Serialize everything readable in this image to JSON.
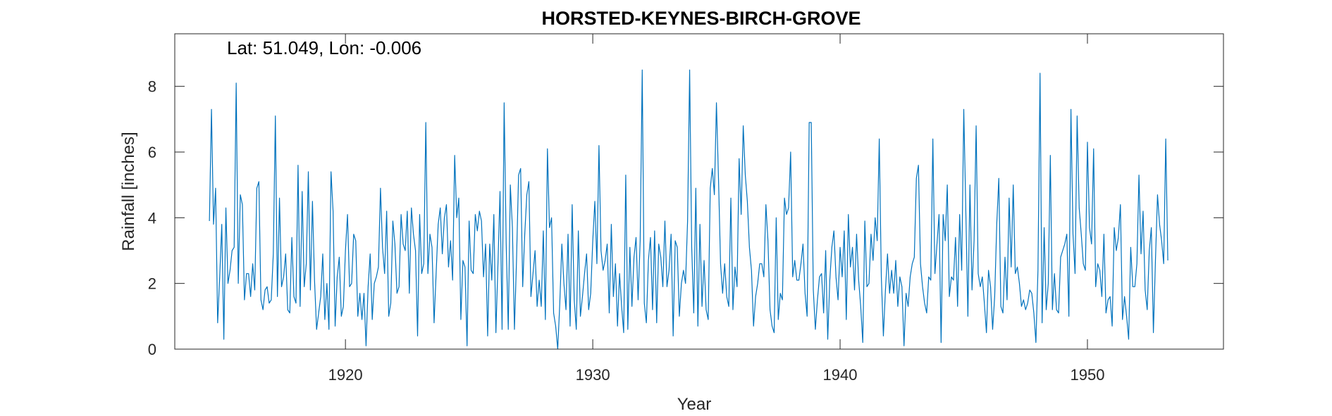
{
  "chart_data": {
    "type": "line",
    "title": "HORSTED-KEYNES-BIRCH-GROVE",
    "annotation": "Lat: 51.049, Lon: -0.006",
    "xlabel": "Year",
    "ylabel": "Rainfall [inches]",
    "xlim": [
      1913.1,
      1955.5
    ],
    "ylim": [
      0,
      9.6
    ],
    "xticks": [
      1920,
      1930,
      1940,
      1950
    ],
    "yticks": [
      0,
      2,
      4,
      6,
      8
    ],
    "grid": false,
    "line_color": "#0072BD",
    "series": [
      {
        "x_start": 1914.5,
        "x_step": 0.0833333,
        "values": [
          3.9,
          7.3,
          3.8,
          4.9,
          0.8,
          2.2,
          3.8,
          0.3,
          4.3,
          2.0,
          2.4,
          3.0,
          3.1,
          8.1,
          2.0,
          4.7,
          4.4,
          1.5,
          2.3,
          2.3,
          1.6,
          2.6,
          1.8,
          4.9,
          5.1,
          1.5,
          1.2,
          1.8,
          1.9,
          1.4,
          1.5,
          2.9,
          7.1,
          1.6,
          4.6,
          1.9,
          2.2,
          2.9,
          1.2,
          1.1,
          3.4,
          1.6,
          1.4,
          5.6,
          1.3,
          4.8,
          1.9,
          2.6,
          5.4,
          1.8,
          4.5,
          2.1,
          0.6,
          1.1,
          1.6,
          2.9,
          0.9,
          2.0,
          0.6,
          5.4,
          4.2,
          0.7,
          2.2,
          2.8,
          1.0,
          1.3,
          3.0,
          4.1,
          1.9,
          2.0,
          3.5,
          3.3,
          1.0,
          1.7,
          0.9,
          1.7,
          0.1,
          1.9,
          2.9,
          0.9,
          2.0,
          2.2,
          2.5,
          4.9,
          3.1,
          2.3,
          4.2,
          1.0,
          1.4,
          3.9,
          3.2,
          1.7,
          1.9,
          4.1,
          3.2,
          3.0,
          4.2,
          1.7,
          4.3,
          3.5,
          3.0,
          0.4,
          4.1,
          2.3,
          2.6,
          6.9,
          2.3,
          3.5,
          3.1,
          0.8,
          2.3,
          3.8,
          4.3,
          2.9,
          4.0,
          4.4,
          2.5,
          3.3,
          2.1,
          5.9,
          4.0,
          4.6,
          0.9,
          2.7,
          2.5,
          0.1,
          3.9,
          2.4,
          2.3,
          4.1,
          3.6,
          4.2,
          3.9,
          2.2,
          3.2,
          0.4,
          3.2,
          2.1,
          4.1,
          0.5,
          2.6,
          4.8,
          0.6,
          7.5,
          3.2,
          0.6,
          5.0,
          3.7,
          0.6,
          2.7,
          5.3,
          5.5,
          1.9,
          3.5,
          4.7,
          5.1,
          1.6,
          2.3,
          3.0,
          1.3,
          2.1,
          1.3,
          3.6,
          0.9,
          6.1,
          3.7,
          4.0,
          1.1,
          0.7,
          0.0,
          1.4,
          3.2,
          2.0,
          1.2,
          3.5,
          0.7,
          4.4,
          1.5,
          0.6,
          3.6,
          1.0,
          1.6,
          2.3,
          2.9,
          1.2,
          1.7,
          3.3,
          4.5,
          2.6,
          6.2,
          3.0,
          2.4,
          2.7,
          3.2,
          1.1,
          3.8,
          1.6,
          2.6,
          0.7,
          2.3,
          1.3,
          0.5,
          5.3,
          0.6,
          3.1,
          1.3,
          2.8,
          3.4,
          1.5,
          3.3,
          8.5,
          1.4,
          0.8,
          2.7,
          3.4,
          1.2,
          3.6,
          0.8,
          3.2,
          2.8,
          1.9,
          3.9,
          1.9,
          2.4,
          3.5,
          0.4,
          3.3,
          3.1,
          1.0,
          2.0,
          2.4,
          2.0,
          3.9,
          8.5,
          3.1,
          1.1,
          4.9,
          0.7,
          3.8,
          1.3,
          2.7,
          1.2,
          0.9,
          4.9,
          5.5,
          4.7,
          7.5,
          5.2,
          2.6,
          1.7,
          2.6,
          1.6,
          1.3,
          4.6,
          1.2,
          2.5,
          1.9,
          5.8,
          4.1,
          6.8,
          5.3,
          4.5,
          3.1,
          2.4,
          0.7,
          1.6,
          2.0,
          2.6,
          2.6,
          2.2,
          4.4,
          3.3,
          1.2,
          0.7,
          0.5,
          4.0,
          0.9,
          1.7,
          1.5,
          4.6,
          4.1,
          4.3,
          6.0,
          2.2,
          2.7,
          2.1,
          2.1,
          2.6,
          3.2,
          1.7,
          1.0,
          6.9,
          6.9,
          1.8,
          0.6,
          1.5,
          2.2,
          2.3,
          1.1,
          3.0,
          0.3,
          2.1,
          3.1,
          3.6,
          2.2,
          1.5,
          3.1,
          2.2,
          3.6,
          0.9,
          4.1,
          2.5,
          3.1,
          1.8,
          3.5,
          2.1,
          1.3,
          0.2,
          3.9,
          1.9,
          2.0,
          3.5,
          2.7,
          4.0,
          3.3,
          6.4,
          2.2,
          0.4,
          1.8,
          2.9,
          1.7,
          2.4,
          1.7,
          2.7,
          1.3,
          2.2,
          1.9,
          0.1,
          1.7,
          1.3,
          2.2,
          2.6,
          2.8,
          5.2,
          5.6,
          2.6,
          1.9,
          1.4,
          1.1,
          2.2,
          2.1,
          6.4,
          2.3,
          3.2,
          4.1,
          0.2,
          4.1,
          3.3,
          5.0,
          1.6,
          2.2,
          2.1,
          3.4,
          1.3,
          4.1,
          2.4,
          7.3,
          4.2,
          1.0,
          5.0,
          1.8,
          3.3,
          6.8,
          2.3,
          1.9,
          2.2,
          1.4,
          0.5,
          2.4,
          1.9,
          0.6,
          1.6,
          3.8,
          5.2,
          1.3,
          1.1,
          2.8,
          1.5,
          4.6,
          2.5,
          5.0,
          2.3,
          2.5,
          2.0,
          1.3,
          1.5,
          1.2,
          1.4,
          1.8,
          1.7,
          1.1,
          0.2,
          2.4,
          8.4,
          0.8,
          3.7,
          1.2,
          2.0,
          5.9,
          1.2,
          2.3,
          1.2,
          1.1,
          2.8,
          3.0,
          3.2,
          3.5,
          1.0,
          7.3,
          3.5,
          2.3,
          7.1,
          4.3,
          3.5,
          2.6,
          2.4,
          6.3,
          3.7,
          3.2,
          6.1,
          1.9,
          2.6,
          2.4,
          1.6,
          3.5,
          1.1,
          1.5,
          1.6,
          0.7,
          3.7,
          3.0,
          3.4,
          4.4,
          0.9,
          1.6,
          1.0,
          0.3,
          3.1,
          1.9,
          1.9,
          2.6,
          5.3,
          2.9,
          4.2,
          1.8,
          1.2,
          3.0,
          3.7,
          0.5,
          2.7,
          4.7,
          3.8,
          3.3,
          2.6,
          6.4,
          2.7
        ]
      }
    ]
  }
}
